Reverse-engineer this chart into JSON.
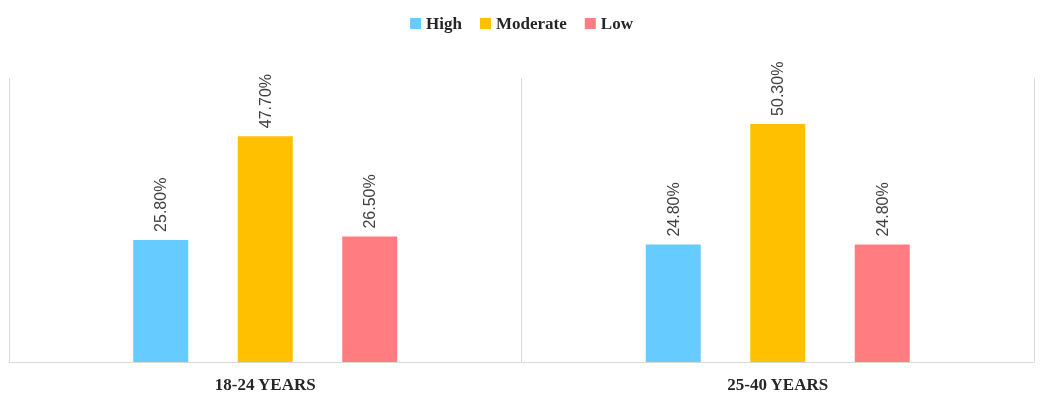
{
  "chart_data": {
    "type": "bar",
    "categories": [
      "18-24 YEARS",
      "25-40 YEARS"
    ],
    "series": [
      {
        "name": "High",
        "color": "#66ccff",
        "values": [
          25.8,
          24.8
        ],
        "value_labels": [
          "25.80%",
          "24.80%"
        ]
      },
      {
        "name": "Moderate",
        "color": "#ffc000",
        "values": [
          47.7,
          50.3
        ],
        "value_labels": [
          "47.70%",
          "50.30%"
        ]
      },
      {
        "name": "Low",
        "color": "#ff7c80",
        "values": [
          26.5,
          24.8
        ],
        "value_labels": [
          "26.50%",
          "24.80%"
        ]
      }
    ],
    "legend": "top",
    "grid": "x"
  }
}
